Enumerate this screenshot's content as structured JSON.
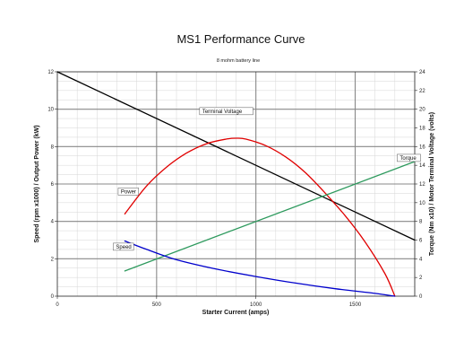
{
  "chart_data": {
    "type": "line",
    "title": "MS1 Performance Curve",
    "subtitle": "8 mohm battery line",
    "xlabel": "Starter Current (amps)",
    "ylabel_left": "Speed (rpm x1000) / Output Power (kW)",
    "ylabel_right": "Torque (Nm x10) / Motor Terminal Voltage (volts)",
    "xlim": [
      0,
      1800
    ],
    "ylim_left": [
      0,
      12
    ],
    "ylim_right": [
      0,
      24
    ],
    "x_ticks": [
      "0",
      "500",
      "1000",
      "1500"
    ],
    "x_tick_values": [
      0,
      500,
      1000,
      1500
    ],
    "y_left_ticks": [
      "0",
      "2",
      "4",
      "6",
      "8",
      "10",
      "12"
    ],
    "y_left_tick_values": [
      0,
      2,
      4,
      6,
      8,
      10,
      12
    ],
    "y_right_ticks": [
      "0",
      "2",
      "4",
      "6",
      "8",
      "10",
      "12",
      "14",
      "16",
      "18",
      "20",
      "22",
      "24"
    ],
    "y_right_tick_values": [
      0,
      2,
      4,
      6,
      8,
      10,
      12,
      14,
      16,
      18,
      20,
      22,
      24
    ],
    "grid": true,
    "colors": {
      "terminal_voltage": "#000000",
      "power": "#e00000",
      "torque": "#2e9a5e",
      "speed": "#0000cc",
      "major_grid": "#888888",
      "minor_grid": "#d6d6d6"
    },
    "series": [
      {
        "name": "Terminal Voltage",
        "axis": "right",
        "x": [
          0,
          1800
        ],
        "values": [
          24,
          6.0
        ]
      },
      {
        "name": "Power",
        "axis": "left",
        "x": [
          340,
          450,
          550,
          650,
          750,
          850,
          900,
          950,
          1050,
          1150,
          1250,
          1350,
          1450,
          1550,
          1650,
          1700
        ],
        "values": [
          4.4,
          5.9,
          6.9,
          7.65,
          8.15,
          8.4,
          8.45,
          8.4,
          8.05,
          7.45,
          6.6,
          5.5,
          4.3,
          2.9,
          1.2,
          0.0
        ]
      },
      {
        "name": "Torque",
        "axis": "right",
        "x": [
          340,
          1800
        ],
        "values": [
          2.7,
          14.4
        ]
      },
      {
        "name": "Speed",
        "axis": "left",
        "x": [
          340,
          450,
          600,
          800,
          1000,
          1200,
          1400,
          1600,
          1700
        ],
        "values": [
          2.95,
          2.5,
          1.95,
          1.45,
          1.05,
          0.7,
          0.4,
          0.15,
          0.0
        ]
      }
    ],
    "annotations": [
      {
        "text": "Terminal Voltage",
        "x": 730,
        "y": 9.8,
        "axis": "left"
      },
      {
        "text": "Torque",
        "x": 1725,
        "y": 7.3,
        "axis": "left"
      },
      {
        "text": "Power",
        "x": 320,
        "y": 5.5,
        "axis": "left"
      },
      {
        "text": "Speed",
        "x": 295,
        "y": 2.55,
        "axis": "left"
      }
    ]
  }
}
